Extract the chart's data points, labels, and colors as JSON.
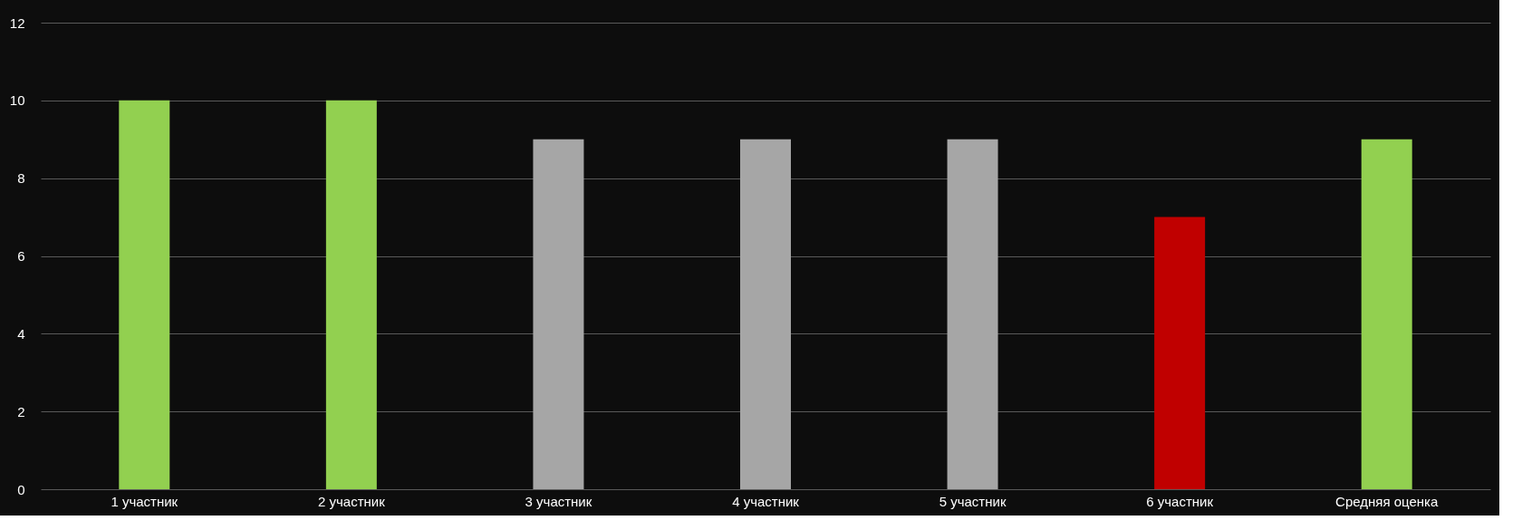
{
  "chart_data": {
    "type": "bar",
    "categories": [
      "1 участник",
      "2 участник",
      "3 участник",
      "4 участник",
      "5 участник",
      "6 участник",
      "Средняя оценка"
    ],
    "values": [
      10,
      10,
      9,
      9,
      9,
      7,
      9
    ],
    "colors": [
      "#92d050",
      "#92d050",
      "#a6a6a6",
      "#a6a6a6",
      "#a6a6a6",
      "#c00000",
      "#92d050"
    ],
    "ylim": [
      0,
      12
    ],
    "yticks": [
      0,
      2,
      4,
      6,
      8,
      10,
      12
    ],
    "grid": "y"
  }
}
